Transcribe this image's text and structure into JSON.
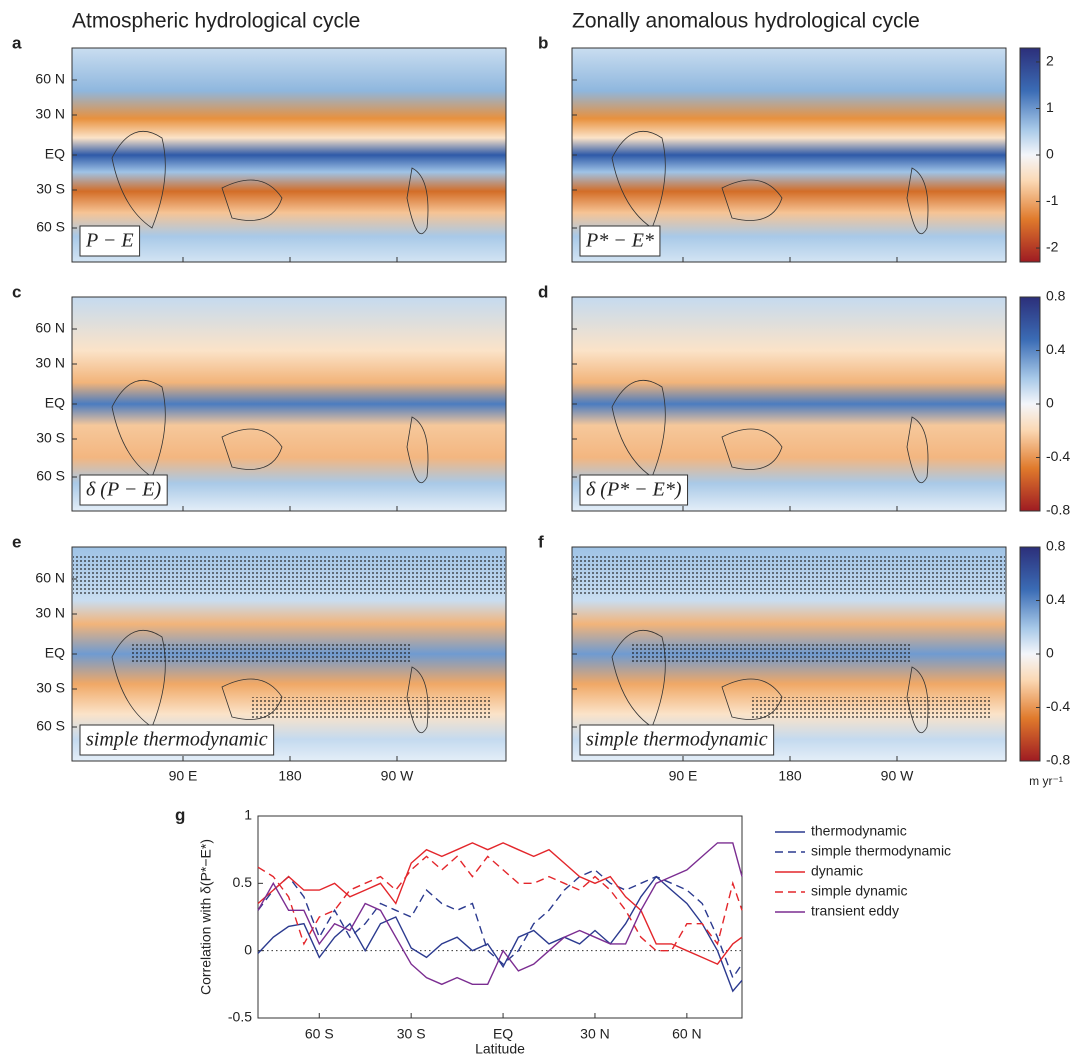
{
  "column_titles": [
    "Atmospheric hydrological cycle",
    "Zonally anomalous hydrological cycle"
  ],
  "map_axes": {
    "yticks": [
      "60 N",
      "30 N",
      "EQ",
      "30 S",
      "60 S"
    ],
    "xticks": [
      "90 E",
      "180",
      "90 W"
    ]
  },
  "panels": [
    {
      "letter": "a",
      "label": "P − E"
    },
    {
      "letter": "b",
      "label": "P* − E*"
    },
    {
      "letter": "c",
      "label": "δ (P − E)"
    },
    {
      "letter": "d",
      "label": "δ (P* − E*)"
    },
    {
      "letter": "e",
      "label": "simple thermodynamic"
    },
    {
      "letter": "f",
      "label": "simple thermodynamic"
    }
  ],
  "colorbars": [
    {
      "lim": [
        -2.3,
        2.3
      ],
      "ticks": [
        2,
        1,
        0,
        -1,
        -2
      ]
    },
    {
      "lim": [
        -0.8,
        0.8
      ],
      "ticks": [
        0.8,
        0.4,
        0,
        -0.4,
        -0.8
      ]
    },
    {
      "lim": [
        -0.8,
        0.8
      ],
      "ticks": [
        0.8,
        0.4,
        0,
        -0.4,
        -0.8
      ]
    }
  ],
  "colorbar_unit": "m yr⁻¹",
  "chart_data": {
    "type": "line",
    "letter": "g",
    "xlabel": "Latitude",
    "ylabel": "Correlation with δ(P*−E*)",
    "xlim": [
      -80,
      78
    ],
    "ylim": [
      -0.5,
      1
    ],
    "xticks": [
      {
        "value": -60,
        "label": "60 S"
      },
      {
        "value": -30,
        "label": "30 S"
      },
      {
        "value": 0,
        "label": "EQ"
      },
      {
        "value": 30,
        "label": "30 N"
      },
      {
        "value": 60,
        "label": "60 N"
      }
    ],
    "yticks": [
      -0.5,
      0,
      0.5,
      1
    ],
    "x": [
      -80,
      -75,
      -70,
      -65,
      -60,
      -55,
      -50,
      -45,
      -40,
      -35,
      -30,
      -25,
      -20,
      -15,
      -10,
      -5,
      0,
      5,
      10,
      15,
      20,
      25,
      30,
      35,
      40,
      45,
      50,
      55,
      60,
      65,
      70,
      75,
      78
    ],
    "series": [
      {
        "name": "thermodynamic",
        "color": "#2b3a8f",
        "style": "solid",
        "values": [
          -0.02,
          0.1,
          0.18,
          0.2,
          -0.05,
          0.1,
          0.2,
          0.0,
          0.2,
          0.25,
          0.02,
          -0.05,
          0.05,
          0.1,
          0.0,
          0.05,
          -0.12,
          0.1,
          0.15,
          0.05,
          0.1,
          0.05,
          0.15,
          0.05,
          0.2,
          0.4,
          0.55,
          0.45,
          0.35,
          0.2,
          0.0,
          -0.3,
          -0.22
        ]
      },
      {
        "name": "simple thermodynamic",
        "color": "#2b3a8f",
        "style": "dashed",
        "values": [
          0.3,
          0.45,
          0.55,
          0.4,
          0.1,
          0.3,
          0.1,
          0.2,
          0.35,
          0.3,
          0.25,
          0.45,
          0.35,
          0.3,
          0.35,
          0.0,
          -0.1,
          0.0,
          0.2,
          0.3,
          0.45,
          0.55,
          0.6,
          0.5,
          0.45,
          0.5,
          0.55,
          0.5,
          0.45,
          0.35,
          0.1,
          -0.2,
          -0.1
        ]
      },
      {
        "name": "dynamic",
        "color": "#e3262b",
        "style": "solid",
        "values": [
          0.35,
          0.45,
          0.55,
          0.45,
          0.45,
          0.5,
          0.4,
          0.45,
          0.5,
          0.35,
          0.65,
          0.75,
          0.7,
          0.75,
          0.8,
          0.75,
          0.8,
          0.75,
          0.7,
          0.75,
          0.65,
          0.55,
          0.5,
          0.55,
          0.4,
          0.3,
          0.05,
          0.05,
          0.0,
          -0.05,
          -0.1,
          0.05,
          0.1
        ]
      },
      {
        "name": "simple dynamic",
        "color": "#e3262b",
        "style": "dashed",
        "values": [
          0.62,
          0.55,
          0.4,
          0.05,
          0.25,
          0.3,
          0.45,
          0.5,
          0.55,
          0.45,
          0.6,
          0.7,
          0.6,
          0.7,
          0.55,
          0.7,
          0.6,
          0.5,
          0.5,
          0.55,
          0.5,
          0.45,
          0.55,
          0.45,
          0.3,
          0.1,
          0.0,
          0.0,
          0.2,
          0.2,
          0.05,
          0.5,
          0.3
        ]
      },
      {
        "name": "transient eddy",
        "color": "#7b2d91",
        "style": "solid",
        "values": [
          0.3,
          0.5,
          0.3,
          0.3,
          0.05,
          0.2,
          0.15,
          0.35,
          0.3,
          0.1,
          -0.1,
          -0.2,
          -0.25,
          -0.2,
          -0.25,
          -0.25,
          0.0,
          -0.15,
          -0.1,
          0.0,
          0.1,
          0.15,
          0.1,
          0.05,
          0.05,
          0.3,
          0.5,
          0.55,
          0.6,
          0.7,
          0.8,
          0.8,
          0.55
        ]
      }
    ]
  }
}
